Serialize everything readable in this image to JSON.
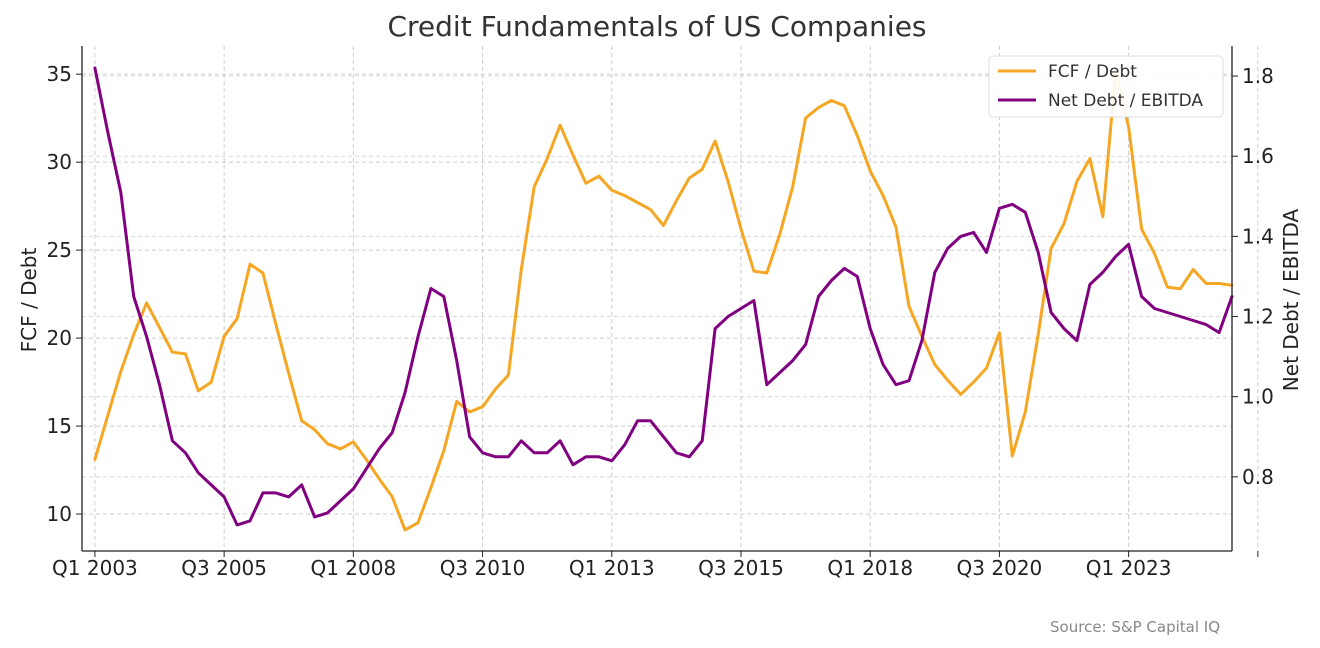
{
  "chart_data": {
    "type": "line",
    "title": "Credit Fundamentals of US Companies",
    "xlabel": "",
    "ylabel_left": "FCF / Debt",
    "ylabel_right": "Net Debt / EBITDA",
    "source": "Source: S&P Capital IQ",
    "legend_position": "top-right",
    "grid": true,
    "xlim": [
      -1,
      88
    ],
    "ylim_left": [
      7.9,
      36.6
    ],
    "ylim_right": [
      0.615,
      1.875
    ],
    "x_ticks": [
      {
        "index": 0,
        "label": "Q1 2003"
      },
      {
        "index": 10,
        "label": "Q3 2005"
      },
      {
        "index": 20,
        "label": "Q1 2008"
      },
      {
        "index": 30,
        "label": "Q3 2010"
      },
      {
        "index": 40,
        "label": "Q1 2013"
      },
      {
        "index": 50,
        "label": "Q3 2015"
      },
      {
        "index": 60,
        "label": "Q1 2018"
      },
      {
        "index": 70,
        "label": "Q3 2020"
      },
      {
        "index": 80,
        "label": "Q1 2023"
      },
      {
        "index": 90,
        "label": ""
      }
    ],
    "y_ticks_left": [
      10,
      15,
      20,
      25,
      30,
      35
    ],
    "y_ticks_right": [
      0.8,
      1.0,
      1.2,
      1.4,
      1.6,
      1.8
    ],
    "series": [
      {
        "name": "FCF / Debt",
        "axis": "left",
        "color": "#F5A623",
        "values": [
          13.1,
          15.6,
          18.1,
          20.2,
          22.0,
          20.6,
          19.2,
          19.1,
          17.0,
          17.5,
          20.1,
          21.1,
          24.2,
          23.7,
          20.8,
          18.0,
          15.3,
          14.8,
          14.0,
          13.7,
          14.1,
          13.1,
          12.0,
          11.0,
          9.1,
          9.5,
          11.5,
          13.6,
          16.4,
          15.8,
          16.1,
          17.1,
          17.9,
          23.9,
          28.6,
          30.2,
          32.1,
          30.4,
          28.8,
          29.2,
          28.4,
          28.1,
          27.7,
          27.3,
          26.4,
          27.8,
          29.1,
          29.6,
          31.2,
          28.9,
          26.2,
          23.8,
          23.7,
          25.9,
          28.6,
          32.5,
          33.1,
          33.5,
          33.2,
          31.5,
          29.5,
          28.1,
          26.3,
          21.8,
          20.1,
          18.5,
          17.6,
          16.8,
          17.5,
          18.3,
          20.3,
          13.3,
          15.8,
          20.2,
          25.1,
          26.5,
          28.9,
          30.2,
          26.9,
          35.2,
          32.0,
          26.2,
          24.8,
          22.9,
          22.8,
          23.9,
          23.1,
          23.1,
          23.0
        ]
      },
      {
        "name": "Net Debt / EBITDA",
        "axis": "right",
        "color": "#800080",
        "values": [
          1.82,
          1.66,
          1.51,
          1.25,
          1.15,
          1.03,
          0.89,
          0.86,
          0.81,
          0.78,
          0.75,
          0.68,
          0.69,
          0.76,
          0.76,
          0.75,
          0.78,
          0.7,
          0.71,
          0.74,
          0.77,
          0.82,
          0.87,
          0.91,
          1.01,
          1.15,
          1.27,
          1.25,
          1.09,
          0.9,
          0.86,
          0.85,
          0.85,
          0.89,
          0.86,
          0.86,
          0.89,
          0.83,
          0.85,
          0.85,
          0.84,
          0.88,
          0.94,
          0.94,
          0.9,
          0.86,
          0.85,
          0.89,
          1.17,
          1.2,
          1.22,
          1.24,
          1.03,
          1.06,
          1.09,
          1.13,
          1.25,
          1.29,
          1.32,
          1.3,
          1.17,
          1.08,
          1.03,
          1.04,
          1.14,
          1.31,
          1.37,
          1.4,
          1.41,
          1.36,
          1.47,
          1.48,
          1.46,
          1.36,
          1.21,
          1.17,
          1.14,
          1.28,
          1.31,
          1.35,
          1.38,
          1.25,
          1.22,
          1.21,
          1.2,
          1.19,
          1.18,
          1.16,
          1.25
        ]
      }
    ]
  }
}
